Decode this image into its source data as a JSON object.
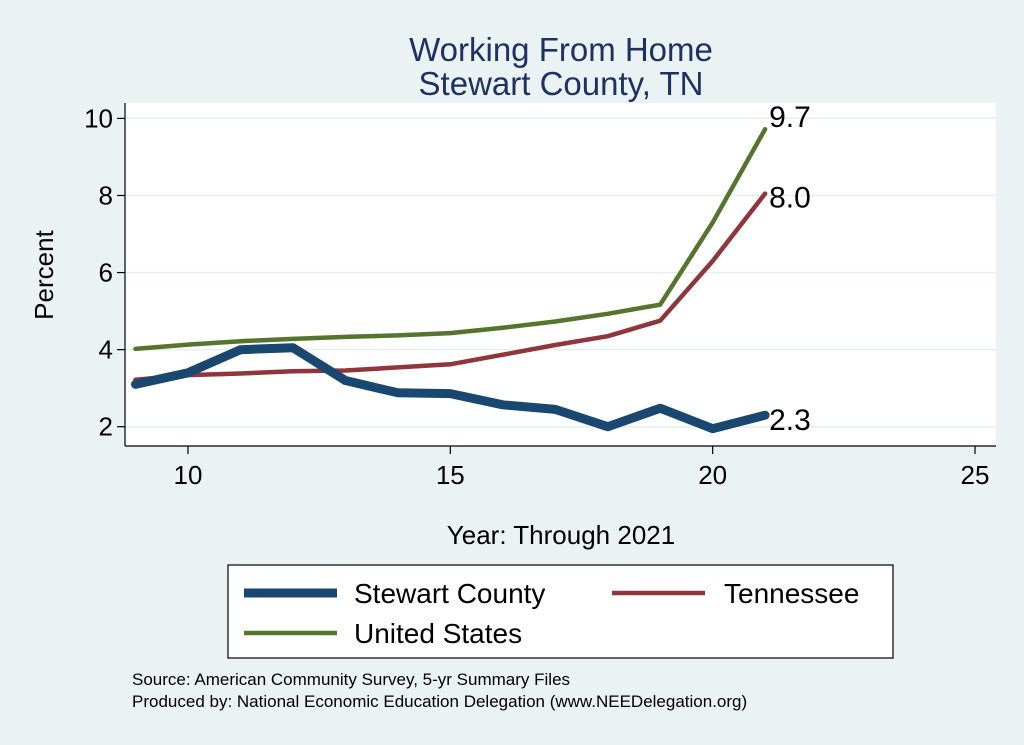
{
  "chart_data": {
    "type": "line",
    "title": "Working From Home",
    "subtitle": "Stewart County, TN",
    "xlabel": "Year: Through 2021",
    "ylabel": "Percent",
    "xlim": [
      8.8,
      25.4
    ],
    "ylim": [
      1.5,
      10.4
    ],
    "xticks": [
      10,
      15,
      20,
      25
    ],
    "yticks": [
      2,
      4,
      6,
      8,
      10
    ],
    "grid": true,
    "legend_position": "bottom",
    "x": [
      9,
      10,
      11,
      12,
      13,
      14,
      15,
      16,
      17,
      18,
      19,
      20,
      21
    ],
    "series": [
      {
        "name": "Stewart County",
        "color": "#1a476f",
        "values": [
          3.1,
          3.4,
          4.0,
          4.05,
          3.2,
          2.88,
          2.86,
          2.57,
          2.45,
          2.0,
          2.48,
          1.95,
          2.3
        ],
        "end_label": "2.3"
      },
      {
        "name": "Tennessee",
        "color": "#90353b",
        "values": [
          3.22,
          3.34,
          3.38,
          3.44,
          3.46,
          3.54,
          3.62,
          3.87,
          4.12,
          4.35,
          4.75,
          6.3,
          8.05
        ],
        "end_label": "8.0"
      },
      {
        "name": "United States",
        "color": "#55752f",
        "values": [
          4.02,
          4.13,
          4.22,
          4.28,
          4.33,
          4.37,
          4.43,
          4.57,
          4.73,
          4.93,
          5.17,
          7.3,
          9.72
        ],
        "end_label": "9.7"
      }
    ],
    "notes": [
      "Source: American Community Survey, 5-yr Summary Files",
      "Produced by: National Economic Education Delegation (www.NEEDelegation.org)"
    ]
  }
}
